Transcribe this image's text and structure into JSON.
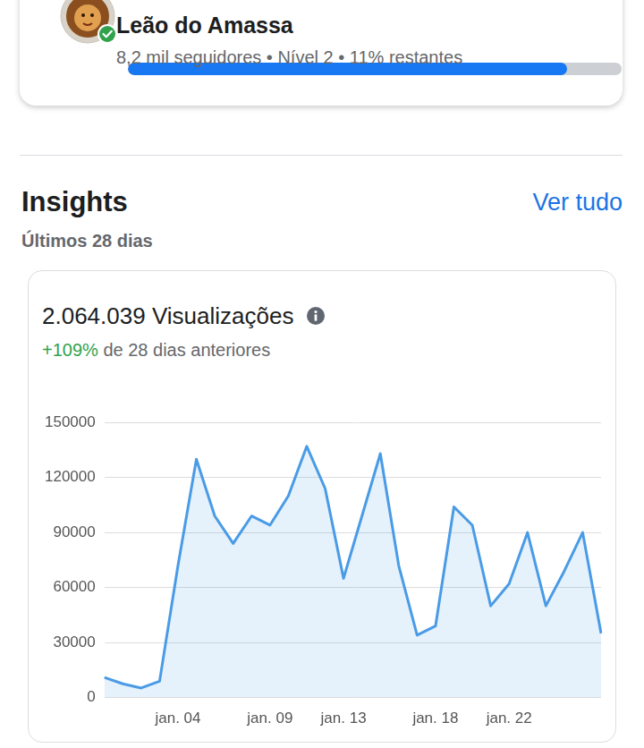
{
  "profile": {
    "name": "Leão do Amassa",
    "details": "8,2 mil seguidores • Nível 2 • 11% restantes",
    "progress_percent": 89
  },
  "insights": {
    "title": "Insights",
    "link": "Ver tudo",
    "period": "Últimos 28 dias",
    "metric": "2.064.039 Visualizações",
    "change": "+109%",
    "change_text": "de 28 dias anteriores"
  },
  "chart_data": {
    "type": "area",
    "categories": [
      null,
      null,
      null,
      null,
      "jan. 04",
      null,
      null,
      null,
      null,
      "jan. 09",
      null,
      null,
      null,
      "jan. 13",
      null,
      null,
      null,
      null,
      "jan. 18",
      null,
      null,
      null,
      "jan. 22",
      null,
      null,
      null,
      null,
      null
    ],
    "values": [
      11000,
      7500,
      5200,
      8900,
      72000,
      130000,
      99000,
      84000,
      99000,
      94000,
      110000,
      137000,
      114000,
      65000,
      99000,
      133000,
      72000,
      34000,
      39000,
      104000,
      94000,
      50000,
      62000,
      90000,
      50000,
      69000,
      90000,
      35000
    ],
    "color": "#4a9be6",
    "ylim": [
      0,
      150000
    ],
    "yticks": [
      0,
      30000,
      60000,
      90000,
      120000,
      150000
    ],
    "grid": true
  }
}
